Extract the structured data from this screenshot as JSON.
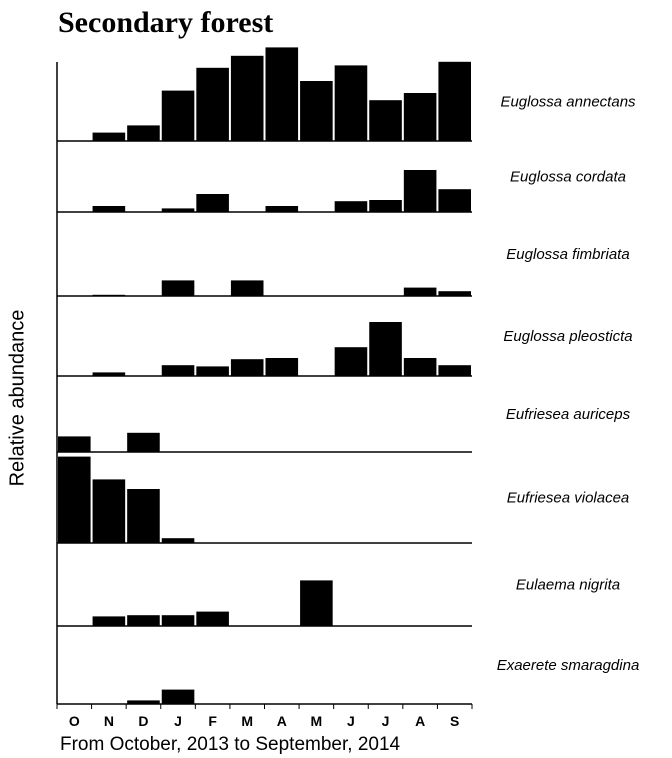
{
  "chart_data": {
    "type": "bar",
    "title": "Secondary forest",
    "xlabel": "From October, 2013 to September, 2014",
    "ylabel": "Relative abundance",
    "categories": [
      "O",
      "N",
      "D",
      "J",
      "F",
      "M",
      "A",
      "M",
      "J",
      "J",
      "A",
      "S"
    ],
    "ylim": [
      0,
      1
    ],
    "grid": false,
    "bar_color": "#000000",
    "series": [
      {
        "name": "Euglossa annectans",
        "values": [
          0,
          0.07,
          0.13,
          0.42,
          0.61,
          0.71,
          0.78,
          0.5,
          0.63,
          0.34,
          0.4,
          0.66
        ]
      },
      {
        "name": "Euglossa cordata",
        "values": [
          0,
          0.05,
          0,
          0.03,
          0.15,
          0,
          0.05,
          0,
          0.09,
          0.1,
          0.35,
          0.19
        ]
      },
      {
        "name": "Euglossa fimbriata",
        "values": [
          0,
          0.01,
          0,
          0.13,
          0,
          0.13,
          0,
          0,
          0,
          0,
          0.07,
          0.04
        ]
      },
      {
        "name": "Euglossa pleosticta",
        "values": [
          0,
          0.03,
          0,
          0.09,
          0.08,
          0.14,
          0.15,
          0,
          0.24,
          0.45,
          0.15,
          0.09
        ]
      },
      {
        "name": "Eufriesea auriceps",
        "values": [
          0.13,
          0,
          0.16,
          0,
          0,
          0,
          0,
          0,
          0,
          0,
          0,
          0
        ]
      },
      {
        "name": "Eufriesea violacea",
        "values": [
          0.72,
          0.53,
          0.45,
          0.04,
          0,
          0,
          0,
          0,
          0,
          0,
          0,
          0
        ]
      },
      {
        "name": "Eulaema nigrita",
        "values": [
          0,
          0.08,
          0.09,
          0.09,
          0.12,
          0,
          0,
          0.38,
          0,
          0,
          0,
          0
        ]
      },
      {
        "name": "Exaerete smaragdina",
        "values": [
          0,
          0,
          0.03,
          0.12,
          0,
          0,
          0,
          0,
          0,
          0,
          0,
          0
        ]
      }
    ]
  }
}
